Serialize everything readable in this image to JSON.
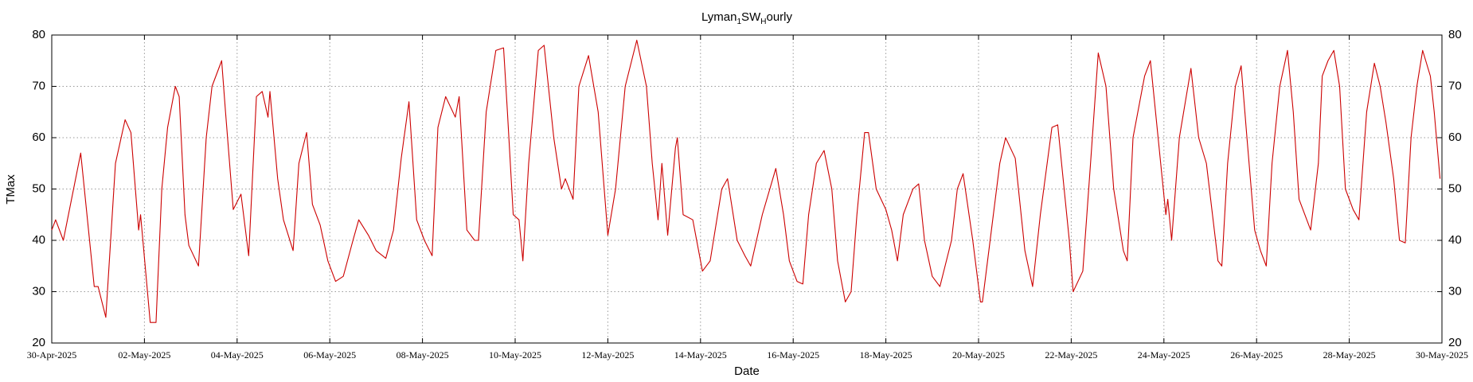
{
  "chart_data": {
    "type": "line",
    "title": "Lyman_1SW_Hourly",
    "x_label": "Date",
    "y_label": "TMax",
    "color": "#cc0000",
    "grid": true,
    "xlim": [
      "2025-04-30T00:00",
      "2025-05-30T00:00"
    ],
    "xticks": [
      {
        "value": "2025-04-30T00:00",
        "label": "30-Apr-2025"
      },
      {
        "value": "2025-05-02T00:00",
        "label": "02-May-2025"
      },
      {
        "value": "2025-05-04T00:00",
        "label": "04-May-2025"
      },
      {
        "value": "2025-05-06T00:00",
        "label": "06-May-2025"
      },
      {
        "value": "2025-05-08T00:00",
        "label": "08-May-2025"
      },
      {
        "value": "2025-05-10T00:00",
        "label": "10-May-2025"
      },
      {
        "value": "2025-05-12T00:00",
        "label": "12-May-2025"
      },
      {
        "value": "2025-05-14T00:00",
        "label": "14-May-2025"
      },
      {
        "value": "2025-05-16T00:00",
        "label": "16-May-2025"
      },
      {
        "value": "2025-05-18T00:00",
        "label": "18-May-2025"
      },
      {
        "value": "2025-05-20T00:00",
        "label": "20-May-2025"
      },
      {
        "value": "2025-05-22T00:00",
        "label": "22-May-2025"
      },
      {
        "value": "2025-05-24T00:00",
        "label": "24-May-2025"
      },
      {
        "value": "2025-05-26T00:00",
        "label": "26-May-2025"
      },
      {
        "value": "2025-05-28T00:00",
        "label": "28-May-2025"
      },
      {
        "value": "2025-05-30T00:00",
        "label": "30-May-2025"
      }
    ],
    "ylim": [
      20,
      80
    ],
    "yticks": [
      20,
      30,
      40,
      50,
      60,
      70,
      80
    ],
    "x": [
      "2025-04-30T00:00",
      "2025-04-30T02:00",
      "2025-04-30T06:00",
      "2025-04-30T15:00",
      "2025-04-30T22:00",
      "2025-05-01T00:00",
      "2025-05-01T04:00",
      "2025-05-01T09:00",
      "2025-05-01T14:00",
      "2025-05-01T17:00",
      "2025-05-01T21:00",
      "2025-05-01T22:00",
      "2025-05-02T03:00",
      "2025-05-02T06:00",
      "2025-05-02T09:00",
      "2025-05-02T12:00",
      "2025-05-02T16:00",
      "2025-05-02T18:00",
      "2025-05-02T21:00",
      "2025-05-02T23:00",
      "2025-05-03T04:00",
      "2025-05-03T08:00",
      "2025-05-03T11:00",
      "2025-05-03T16:00",
      "2025-05-03T18:00",
      "2025-05-03T22:00",
      "2025-05-04T02:00",
      "2025-05-04T06:00",
      "2025-05-04T10:00",
      "2025-05-04T13:00",
      "2025-05-04T16:00",
      "2025-05-04T17:00",
      "2025-05-04T21:00",
      "2025-05-05T00:00",
      "2025-05-05T05:00",
      "2025-05-05T08:00",
      "2025-05-05T12:00",
      "2025-05-05T15:00",
      "2025-05-05T19:00",
      "2025-05-05T23:00",
      "2025-05-06T03:00",
      "2025-05-06T07:00",
      "2025-05-06T12:00",
      "2025-05-06T15:00",
      "2025-05-06T20:00",
      "2025-05-07T00:00",
      "2025-05-07T05:00",
      "2025-05-07T09:00",
      "2025-05-07T13:00",
      "2025-05-07T17:00",
      "2025-05-07T21:00",
      "2025-05-08T01:00",
      "2025-05-08T05:00",
      "2025-05-08T08:00",
      "2025-05-08T12:00",
      "2025-05-08T17:00",
      "2025-05-08T19:00",
      "2025-05-08T23:00",
      "2025-05-09T03:00",
      "2025-05-09T05:00",
      "2025-05-09T09:00",
      "2025-05-09T14:00",
      "2025-05-09T18:00",
      "2025-05-09T20:00",
      "2025-05-09T23:00",
      "2025-05-10T02:00",
      "2025-05-10T04:00",
      "2025-05-10T07:00",
      "2025-05-10T12:00",
      "2025-05-10T15:00",
      "2025-05-10T20:00",
      "2025-05-11T00:00",
      "2025-05-11T02:00",
      "2025-05-11T06:00",
      "2025-05-11T09:00",
      "2025-05-11T14:00",
      "2025-05-11T19:00",
      "2025-05-12T00:00",
      "2025-05-12T04:00",
      "2025-05-12T09:00",
      "2025-05-12T15:00",
      "2025-05-12T20:00",
      "2025-05-12T23:00",
      "2025-05-13T02:00",
      "2025-05-13T04:00",
      "2025-05-13T07:00",
      "2025-05-13T11:00",
      "2025-05-13T12:00",
      "2025-05-13T15:00",
      "2025-05-13T20:00",
      "2025-05-13T22:00",
      "2025-05-14T01:00",
      "2025-05-14T05:00",
      "2025-05-14T11:00",
      "2025-05-14T14:00",
      "2025-05-14T19:00",
      "2025-05-14T23:00",
      "2025-05-15T02:00",
      "2025-05-15T08:00",
      "2025-05-15T15:00",
      "2025-05-15T19:00",
      "2025-05-15T22:00",
      "2025-05-16T02:00",
      "2025-05-16T05:00",
      "2025-05-16T08:00",
      "2025-05-16T12:00",
      "2025-05-16T16:00",
      "2025-05-16T20:00",
      "2025-05-16T23:00",
      "2025-05-17T03:00",
      "2025-05-17T06:00",
      "2025-05-17T09:00",
      "2025-05-17T13:00",
      "2025-05-17T15:00",
      "2025-05-17T19:00",
      "2025-05-18T00:00",
      "2025-05-18T03:00",
      "2025-05-18T06:00",
      "2025-05-18T09:00",
      "2025-05-18T14:00",
      "2025-05-18T17:00",
      "2025-05-18T20:00",
      "2025-05-19T00:00",
      "2025-05-19T04:00",
      "2025-05-19T10:00",
      "2025-05-19T13:00",
      "2025-05-19T16:00",
      "2025-05-19T21:00",
      "2025-05-20T01:00",
      "2025-05-20T02:00",
      "2025-05-20T06:00",
      "2025-05-20T11:00",
      "2025-05-20T14:00",
      "2025-05-20T19:00",
      "2025-05-21T00:00",
      "2025-05-21T04:00",
      "2025-05-21T08:00",
      "2025-05-21T14:00",
      "2025-05-21T17:00",
      "2025-05-21T23:00",
      "2025-05-22T01:00",
      "2025-05-22T06:00",
      "2025-05-22T10:00",
      "2025-05-22T14:00",
      "2025-05-22T18:00",
      "2025-05-22T22:00",
      "2025-05-23T03:00",
      "2025-05-23T05:00",
      "2025-05-23T08:00",
      "2025-05-23T14:00",
      "2025-05-23T17:00",
      "2025-05-23T21:00",
      "2025-05-24T01:00",
      "2025-05-24T02:00",
      "2025-05-24T04:00",
      "2025-05-24T08:00",
      "2025-05-24T14:00",
      "2025-05-24T18:00",
      "2025-05-24T22:00",
      "2025-05-25T04:00",
      "2025-05-25T06:00",
      "2025-05-25T09:00",
      "2025-05-25T13:00",
      "2025-05-25T16:00",
      "2025-05-25T19:00",
      "2025-05-25T23:00",
      "2025-05-26T02:00",
      "2025-05-26T05:00",
      "2025-05-26T08:00",
      "2025-05-26T12:00",
      "2025-05-26T16:00",
      "2025-05-26T19:00",
      "2025-05-26T22:00",
      "2025-05-27T02:00",
      "2025-05-27T04:00",
      "2025-05-27T08:00",
      "2025-05-27T10:00",
      "2025-05-27T13:00",
      "2025-05-27T16:00",
      "2025-05-27T19:00",
      "2025-05-27T22:00",
      "2025-05-28T02:00",
      "2025-05-28T05:00",
      "2025-05-28T09:00",
      "2025-05-28T13:00",
      "2025-05-28T16:00",
      "2025-05-28T19:00",
      "2025-05-28T23:00",
      "2025-05-29T02:00",
      "2025-05-29T05:00",
      "2025-05-29T08:00",
      "2025-05-29T11:00",
      "2025-05-29T14:00",
      "2025-05-29T18:00",
      "2025-05-29T20:00",
      "2025-05-29T23:00"
    ],
    "values": [
      42,
      44,
      40,
      57,
      31,
      31,
      25,
      55,
      63.5,
      61,
      42,
      45,
      24,
      24,
      50,
      62,
      70,
      68,
      45,
      39,
      35,
      60,
      70,
      75,
      65,
      46,
      49,
      37,
      68,
      69,
      64,
      69,
      52,
      44,
      38,
      55,
      61,
      47,
      43,
      36,
      32,
      33,
      40,
      44,
      41,
      38,
      36.5,
      42,
      56,
      67,
      44,
      40,
      37,
      62,
      68,
      64,
      68,
      42,
      40,
      40,
      65,
      77,
      77.5,
      65,
      45,
      44,
      36,
      55,
      77,
      78,
      60,
      50,
      52,
      48,
      70,
      76,
      65,
      41,
      50,
      70,
      79,
      70,
      55,
      44,
      55,
      41,
      58,
      60,
      45,
      44,
      40,
      34,
      36,
      50,
      52,
      40,
      37,
      35,
      45,
      54,
      45,
      36,
      32,
      31.5,
      45,
      55,
      57.5,
      50,
      36,
      28,
      30,
      45,
      61,
      61,
      50,
      46,
      42,
      36,
      45,
      50,
      51,
      40,
      33,
      31,
      40,
      50,
      53,
      40,
      28,
      28,
      40,
      55,
      60,
      56,
      38,
      31,
      45,
      62,
      62.5,
      40,
      30,
      34,
      55,
      76.5,
      70,
      50,
      38,
      36,
      60,
      72,
      75,
      60,
      45,
      48,
      40,
      60,
      73.5,
      60,
      55,
      36,
      35,
      55,
      70,
      74,
      60,
      42,
      38,
      35,
      55,
      70,
      77,
      65,
      48,
      44,
      42,
      55,
      72,
      75,
      77,
      70,
      50,
      46,
      44,
      65,
      74.5,
      70,
      63,
      52,
      40,
      39.5,
      60,
      70,
      77,
      72,
      65,
      52
    ]
  }
}
